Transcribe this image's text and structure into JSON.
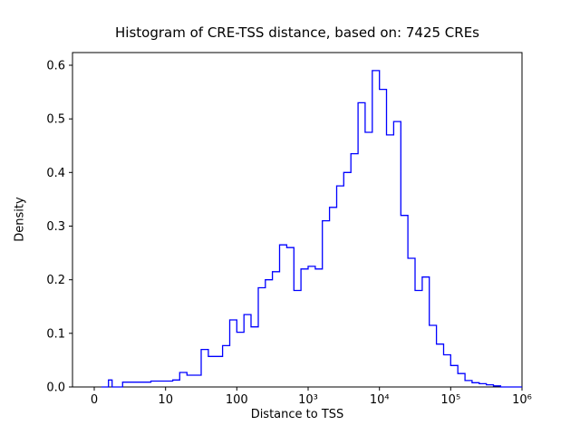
{
  "chart_data": {
    "type": "bar",
    "subtype": "step-histogram",
    "title": "Histogram of CRE-TSS distance, based on: 7425 CREs",
    "xlabel": "Distance to TSS",
    "ylabel": "Density",
    "xscale": "symlog",
    "grid": false,
    "legend": "none",
    "line_color": "#0000ff",
    "axis_color": "#000000",
    "background": "#ffffff",
    "ylim": [
      0.0,
      0.62
    ],
    "xlim_labels": [
      "0",
      "1000000"
    ],
    "x_ticks": [
      {
        "value": 0,
        "label": "0"
      },
      {
        "value": 10,
        "label": "10"
      },
      {
        "value": 100,
        "label": "100"
      },
      {
        "value": 1000,
        "label": "10³"
      },
      {
        "value": 10000,
        "label": "10⁴"
      },
      {
        "value": 100000,
        "label": "10⁵"
      },
      {
        "value": 1000000,
        "label": "10⁶"
      }
    ],
    "y_ticks": [
      {
        "value": 0.0,
        "label": "0.0"
      },
      {
        "value": 0.1,
        "label": "0.1"
      },
      {
        "value": 0.2,
        "label": "0.2"
      },
      {
        "value": 0.3,
        "label": "0.3"
      },
      {
        "value": 0.4,
        "label": "0.4"
      },
      {
        "value": 0.5,
        "label": "0.5"
      },
      {
        "value": 0.6,
        "label": "0.6"
      }
    ],
    "bin_edges": [
      1,
      1.26,
      1.58,
      2.0,
      2.51,
      3.16,
      3.98,
      5.01,
      6.31,
      7.94,
      10,
      12.6,
      15.8,
      20,
      25.1,
      31.6,
      39.8,
      50.1,
      63.1,
      79.4,
      100,
      126,
      158,
      200,
      251,
      316,
      398,
      501,
      631,
      794,
      1000,
      1259,
      1585,
      1995,
      2512,
      3162,
      3981,
      5012,
      6310,
      7943,
      10000,
      12589,
      15849,
      19953,
      25119,
      31623,
      39811,
      50119,
      63096,
      79433,
      100000,
      125893,
      158489,
      199526,
      251189,
      316228,
      398107,
      501187,
      630957,
      794328,
      1000000
    ],
    "densities": [
      0,
      0,
      0,
      0.013,
      0,
      0,
      0.009,
      0.009,
      0.009,
      0.011,
      0.011,
      0.013,
      0.027,
      0.022,
      0.022,
      0.07,
      0.057,
      0.057,
      0.077,
      0.125,
      0.102,
      0.135,
      0.112,
      0.185,
      0.2,
      0.215,
      0.265,
      0.26,
      0.18,
      0.22,
      0.225,
      0.22,
      0.31,
      0.335,
      0.375,
      0.4,
      0.435,
      0.53,
      0.475,
      0.59,
      0.555,
      0.47,
      0.495,
      0.32,
      0.24,
      0.18,
      0.205,
      0.115,
      0.08,
      0.06,
      0.04,
      0.025,
      0.012,
      0.008,
      0.006,
      0.004,
      0.002,
      0,
      0,
      0
    ]
  }
}
